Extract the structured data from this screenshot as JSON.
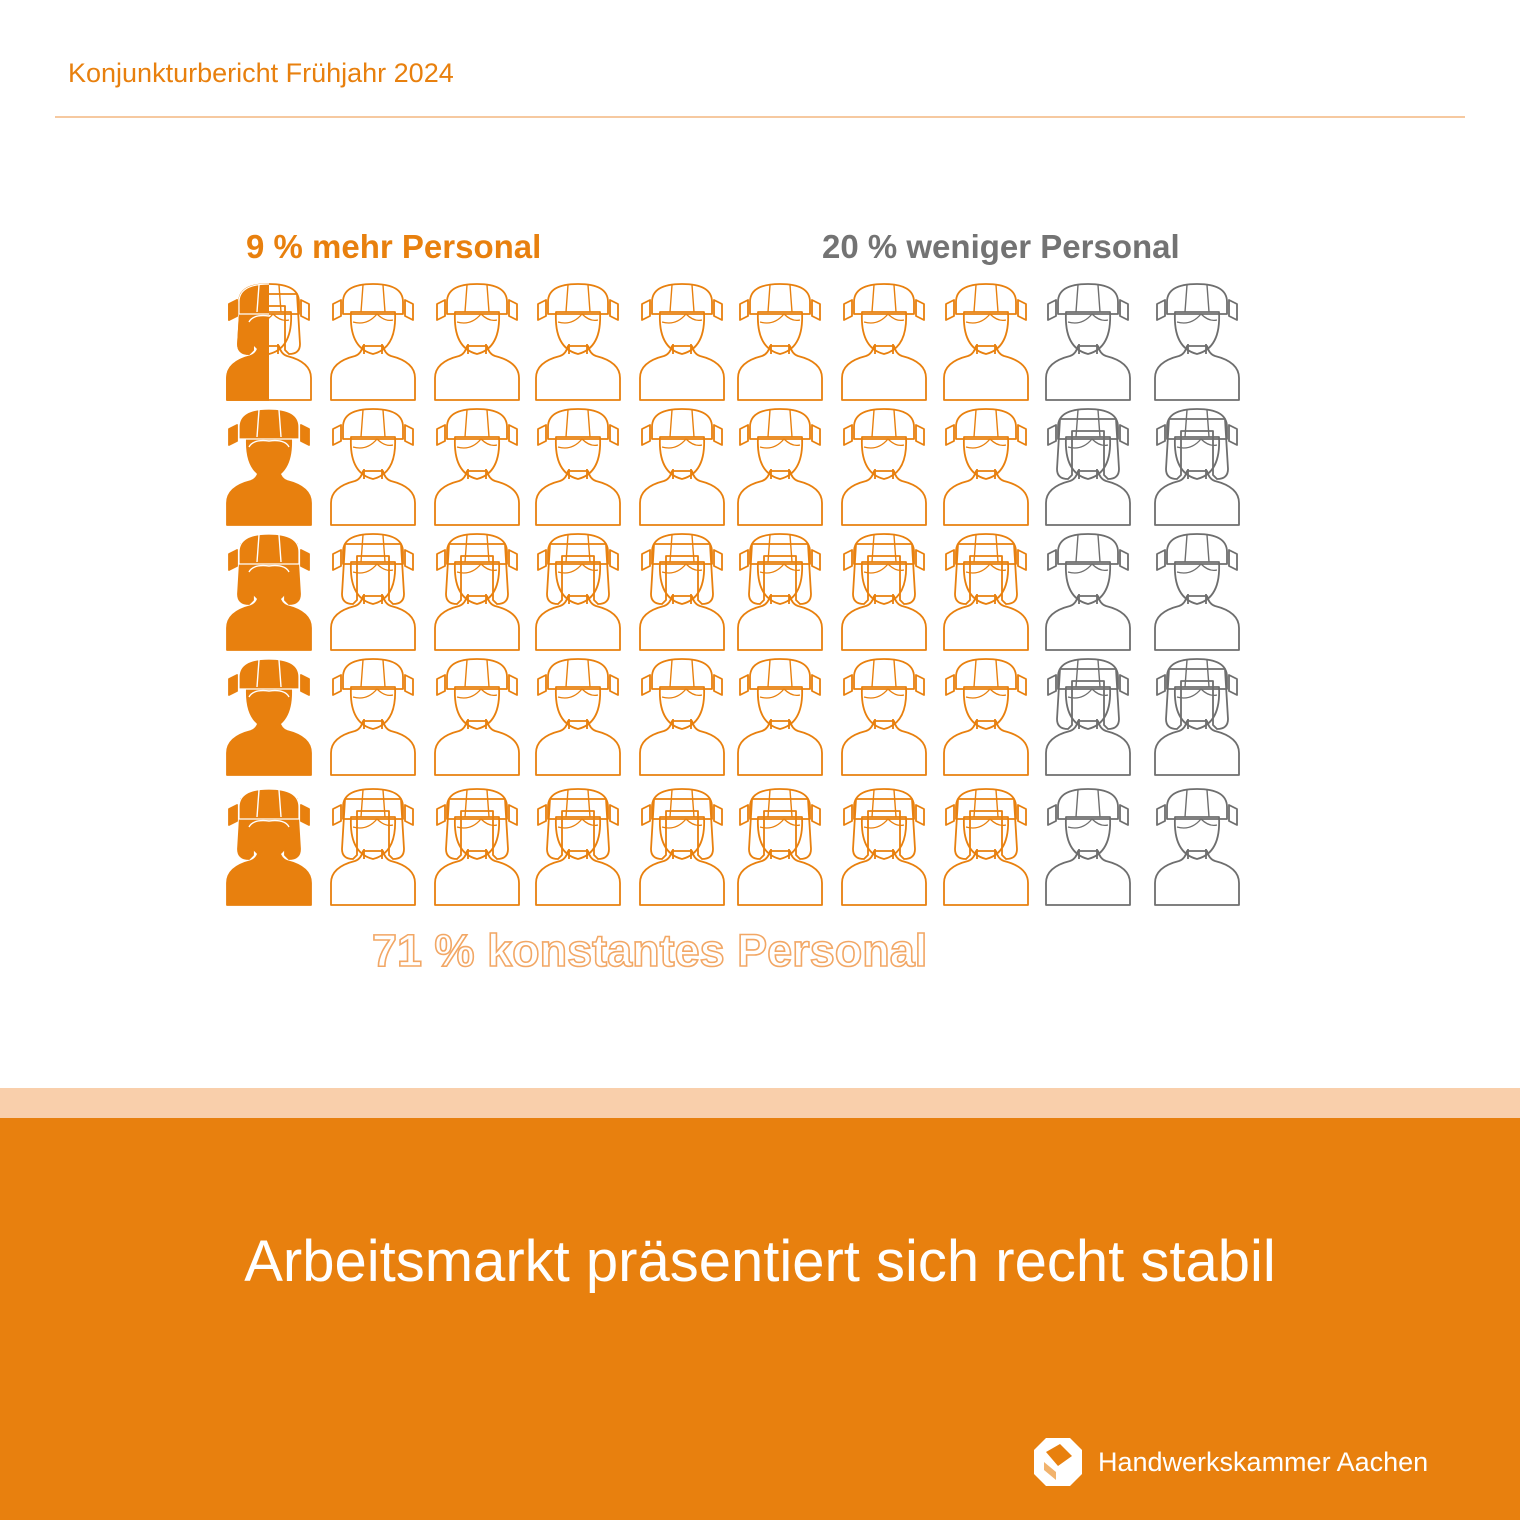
{
  "header": {
    "title": "Konjunkturbericht Frühjahr 2024"
  },
  "chart_data": {
    "type": "pictogram",
    "rows": 5,
    "columns": 10,
    "categories": [
      {
        "label": "9 % mehr Personal",
        "value": 9,
        "unit": "%",
        "style": "filled",
        "color": "#e8800e"
      },
      {
        "label": "71 % konstantes Personal",
        "value": 71,
        "unit": "%",
        "style": "outline",
        "color": "#e8800e"
      },
      {
        "label": "20 % weniger Personal",
        "value": 20,
        "unit": "%",
        "style": "outline",
        "color": "#6e6e6e"
      }
    ]
  },
  "footer": {
    "headline": "Arbeitsmarkt präsentiert sich recht stabil",
    "logo_text": "Handwerkskammer Aachen"
  },
  "colors": {
    "accent": "#e8800e",
    "accent_light": "#f9cfab",
    "gray": "#6e6e6e"
  }
}
